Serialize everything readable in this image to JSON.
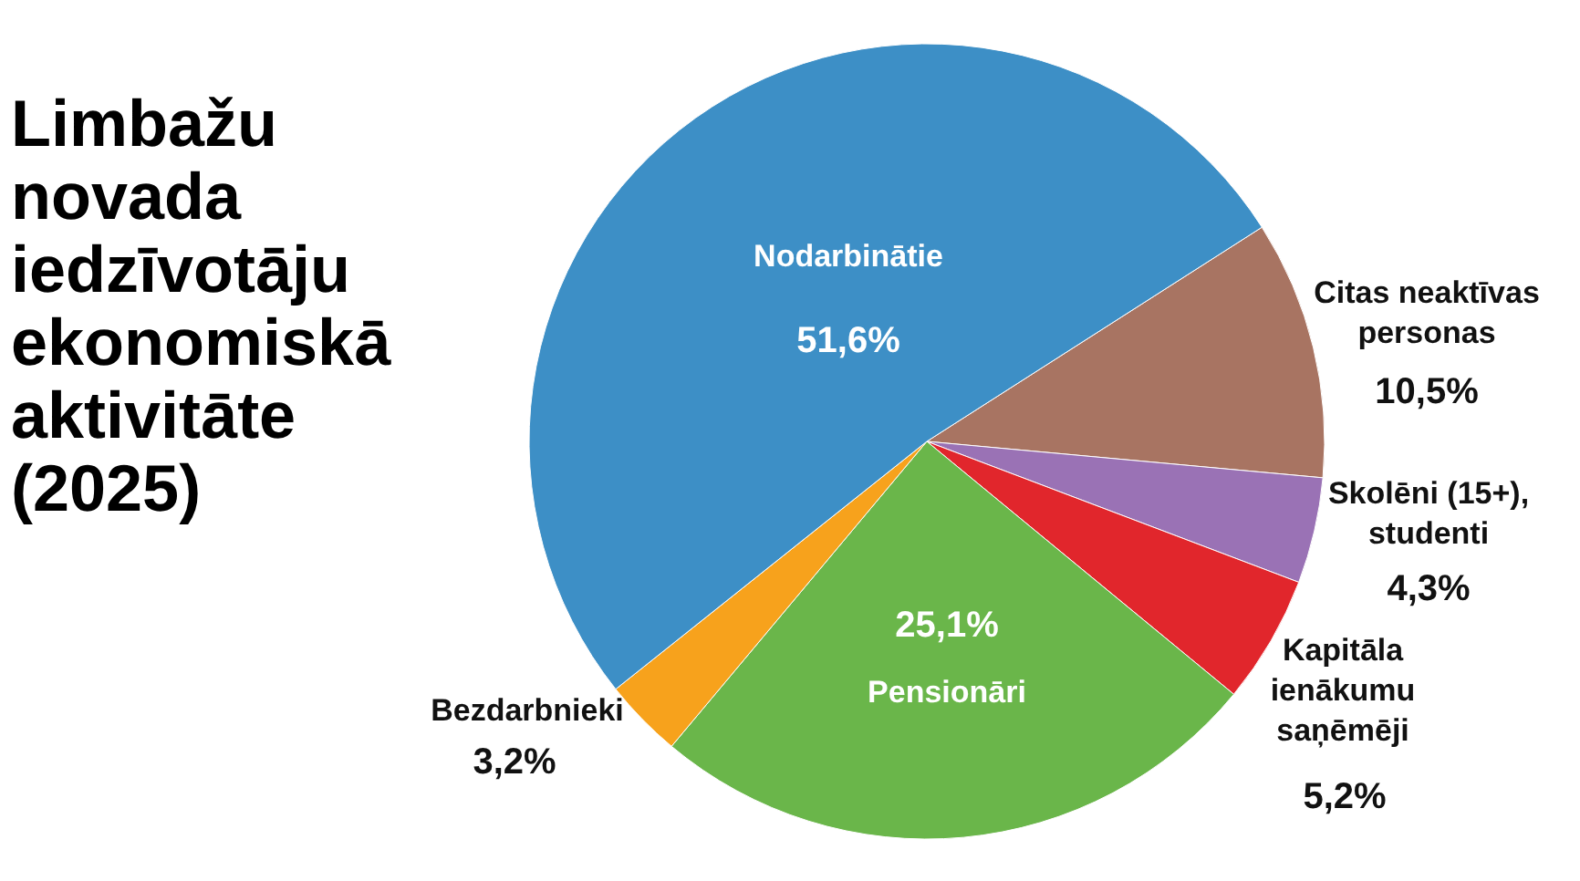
{
  "chart_data": {
    "type": "pie",
    "title": "Limbažu novada iedzīvotāju ekonomiskā aktivitāte (2025)",
    "categories": [
      "Citas neaktīvas\npersonas",
      "Skolēni (15+),\nstudenti",
      "Kapitāla\nienākumu\nsaņēmēji",
      "Pensionāri",
      "Bezdarbnieki",
      "Nodarbinātie"
    ],
    "values": [
      10.5,
      4.3,
      5.2,
      25.1,
      3.2,
      51.6
    ],
    "value_labels": [
      "10,5%",
      "4,3%",
      "5,2%",
      "25,1%",
      "3,2%",
      "51,6%"
    ],
    "colors": [
      "#a87462",
      "#9a72b5",
      "#e1262c",
      "#6ab64a",
      "#f7a21c",
      "#3d8fc6"
    ]
  }
}
